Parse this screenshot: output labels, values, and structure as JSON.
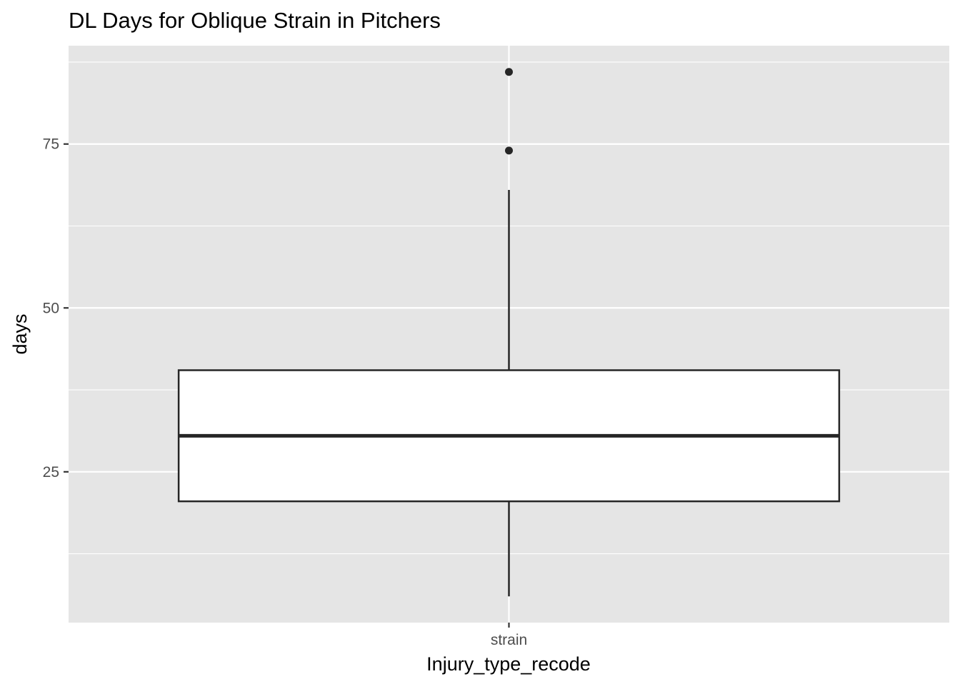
{
  "chart_data": {
    "type": "boxplot",
    "title": "DL Days for Oblique Strain in Pitchers",
    "xlabel": "Injury_type_recode",
    "ylabel": "days",
    "categories": [
      "strain"
    ],
    "boxes": [
      {
        "category": "strain",
        "lower_whisker": 6,
        "q1": 20.5,
        "median": 30.5,
        "q3": 40.5,
        "upper_whisker": 68,
        "outliers": [
          74,
          86
        ]
      }
    ],
    "y_ticks": [
      25,
      50,
      75
    ],
    "y_tick_labels": [
      "25",
      "50",
      "75"
    ],
    "y_minor_ticks": [
      12.5,
      37.5,
      62.5,
      87.5
    ],
    "ylim": [
      2,
      90
    ],
    "grid": true,
    "legend": "none",
    "colors": {
      "panel_background": "#e5e5e5",
      "grid": "#ffffff",
      "box_fill": "#ffffff",
      "box_line": "#262626",
      "tick_label": "#4d4d4d"
    }
  }
}
